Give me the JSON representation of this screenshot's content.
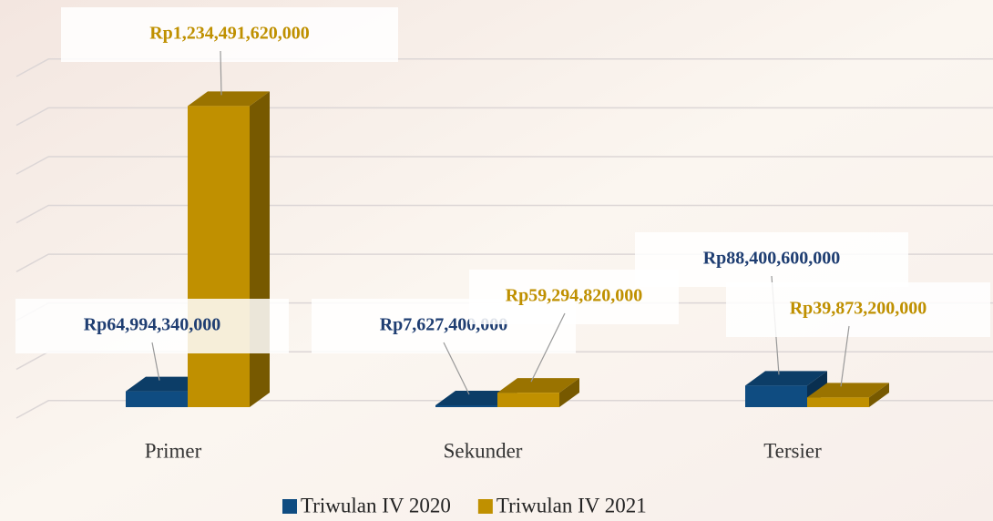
{
  "chart_data": {
    "type": "bar3d",
    "categories": [
      "Primer",
      "Sekunder",
      "Tersier"
    ],
    "series": [
      {
        "name": "Triwulan IV 2020",
        "color": "#0f4c81",
        "values": [
          64994340000,
          7627400000,
          88400600000
        ],
        "value_labels": [
          "Rp64,994,340,000",
          "Rp7,627,400,000",
          "Rp88,400,600,000"
        ]
      },
      {
        "name": "Triwulan IV 2021",
        "color": "#c09000",
        "values": [
          1234491620000,
          59294820000,
          39873200000
        ],
        "value_labels": [
          "Rp1,234,491,620,000",
          "Rp59,294,820,000",
          "Rp39,873,200,000"
        ]
      }
    ],
    "ylim": [
      0,
      1400000000000
    ],
    "yticks": [
      0,
      200000000000,
      400000000000,
      600000000000,
      800000000000,
      1000000000000,
      1200000000000,
      1400000000000
    ],
    "grid": true
  }
}
